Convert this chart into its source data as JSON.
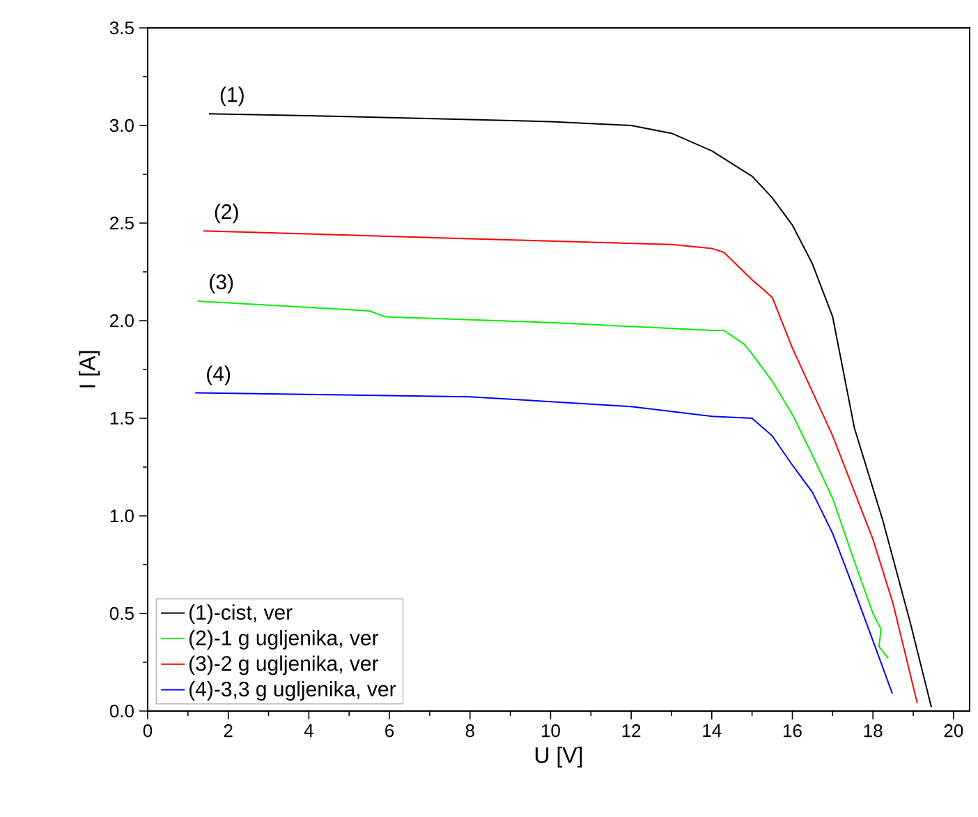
{
  "chart_data": {
    "type": "line",
    "xlabel": "U [V]",
    "ylabel": "I [A]",
    "xlim": [
      0,
      20.4
    ],
    "ylim": [
      0,
      3.5
    ],
    "xticks": [
      0,
      2,
      4,
      6,
      8,
      10,
      12,
      14,
      16,
      18,
      20
    ],
    "yticks": [
      {
        "value": 0,
        "label": "0.0"
      },
      {
        "value": 0.5,
        "label": "0.5"
      },
      {
        "value": 1,
        "label": "1.0"
      },
      {
        "value": 1.5,
        "label": "1.5"
      },
      {
        "value": 2,
        "label": "2.0"
      },
      {
        "value": 2.5,
        "label": "2.5"
      },
      {
        "value": 3,
        "label": "3.0"
      },
      {
        "value": 3.5,
        "label": "3.5"
      }
    ],
    "legend": "bottom left",
    "grid": false,
    "series": [
      {
        "name": "(1)-cist, ver",
        "color": "#000000",
        "x": [
          1.52,
          4,
          8,
          10,
          12,
          13,
          14,
          15,
          15.5,
          16,
          16.5,
          17,
          17.54,
          18.24,
          18.93,
          19.45
        ],
        "values": [
          3.06,
          3.05,
          3.03,
          3.02,
          3.0,
          2.96,
          2.87,
          2.74,
          2.63,
          2.49,
          2.29,
          2.02,
          1.45,
          0.98,
          0.45,
          0.02
        ]
      },
      {
        "name": "(2)-1 g ugljenika, ver",
        "color": "#00ee00",
        "x": [
          1.25,
          5.5,
          5.9,
          10,
          14,
          14.3,
          14.8,
          15,
          15.5,
          16,
          16.5,
          17,
          17.5,
          18,
          18.2,
          18.15,
          18.38
        ],
        "values": [
          2.1,
          2.05,
          2.02,
          1.99,
          1.95,
          1.95,
          1.88,
          1.83,
          1.69,
          1.52,
          1.31,
          1.09,
          0.79,
          0.5,
          0.42,
          0.33,
          0.27
        ]
      },
      {
        "name": "(3)-2 g ugljenika, ver",
        "color": "#ff0000",
        "x": [
          1.38,
          8,
          13,
          14,
          14.3,
          15,
          15.5,
          16,
          17,
          18,
          18.5,
          19.1
        ],
        "values": [
          2.46,
          2.42,
          2.39,
          2.37,
          2.35,
          2.21,
          2.12,
          1.86,
          1.41,
          0.88,
          0.55,
          0.04
        ]
      },
      {
        "name": "(4)-3,3 g ugljenika, ver",
        "color": "#0000ff",
        "x": [
          1.18,
          8,
          12,
          14,
          15,
          15.5,
          16,
          16.5,
          17,
          17.5,
          18,
          18.48
        ],
        "values": [
          1.63,
          1.61,
          1.56,
          1.51,
          1.5,
          1.41,
          1.26,
          1.12,
          0.91,
          0.64,
          0.36,
          0.09
        ]
      }
    ],
    "annotations": [
      "(1)",
      "(2)",
      "(3)",
      "(4)"
    ]
  }
}
